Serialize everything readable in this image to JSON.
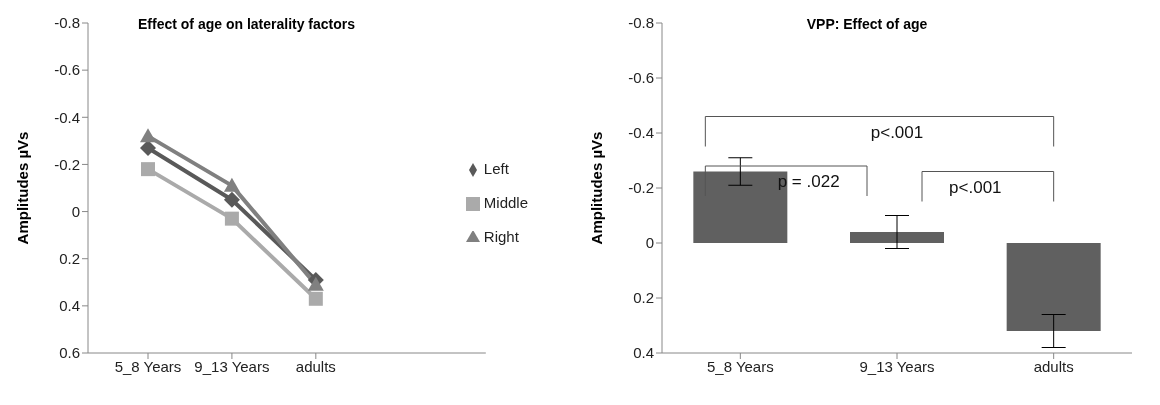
{
  "chart_data": [
    {
      "type": "line",
      "title": "Effect of age on laterality factors",
      "ylabel": "Amplitudes µVs",
      "categories": [
        "5_8 Years",
        "9_13 Years",
        "adults"
      ],
      "series": [
        {
          "name": "Left",
          "color": "#595959",
          "marker": "diamond",
          "values": [
            -0.27,
            -0.05,
            0.29
          ]
        },
        {
          "name": "Middle",
          "color": "#aaaaaa",
          "marker": "square",
          "values": [
            -0.18,
            0.03,
            0.37
          ]
        },
        {
          "name": "Right",
          "color": "#808080",
          "marker": "triangle",
          "values": [
            -0.32,
            -0.11,
            0.31
          ]
        }
      ],
      "ylim": [
        0.6,
        -0.8
      ],
      "yticks": [
        -0.8,
        -0.6,
        -0.4,
        -0.2,
        0,
        0.2,
        0.4,
        0.6
      ],
      "legend": "right"
    },
    {
      "type": "bar",
      "title": "VPP: Effect of age",
      "ylabel": "Amplitudes µVs",
      "categories": [
        "5_8 Years",
        "9_13 Years",
        "adults"
      ],
      "values": [
        -0.26,
        -0.04,
        0.32
      ],
      "errors": [
        0.05,
        0.06,
        0.06
      ],
      "color": "#606060",
      "ylim": [
        0.4,
        -0.8
      ],
      "yticks": [
        -0.8,
        -0.6,
        -0.4,
        -0.2,
        0,
        0.2,
        0.4
      ],
      "legend": false,
      "annotations": [
        "p<.001",
        "p = .022",
        "p<.001"
      ]
    }
  ]
}
